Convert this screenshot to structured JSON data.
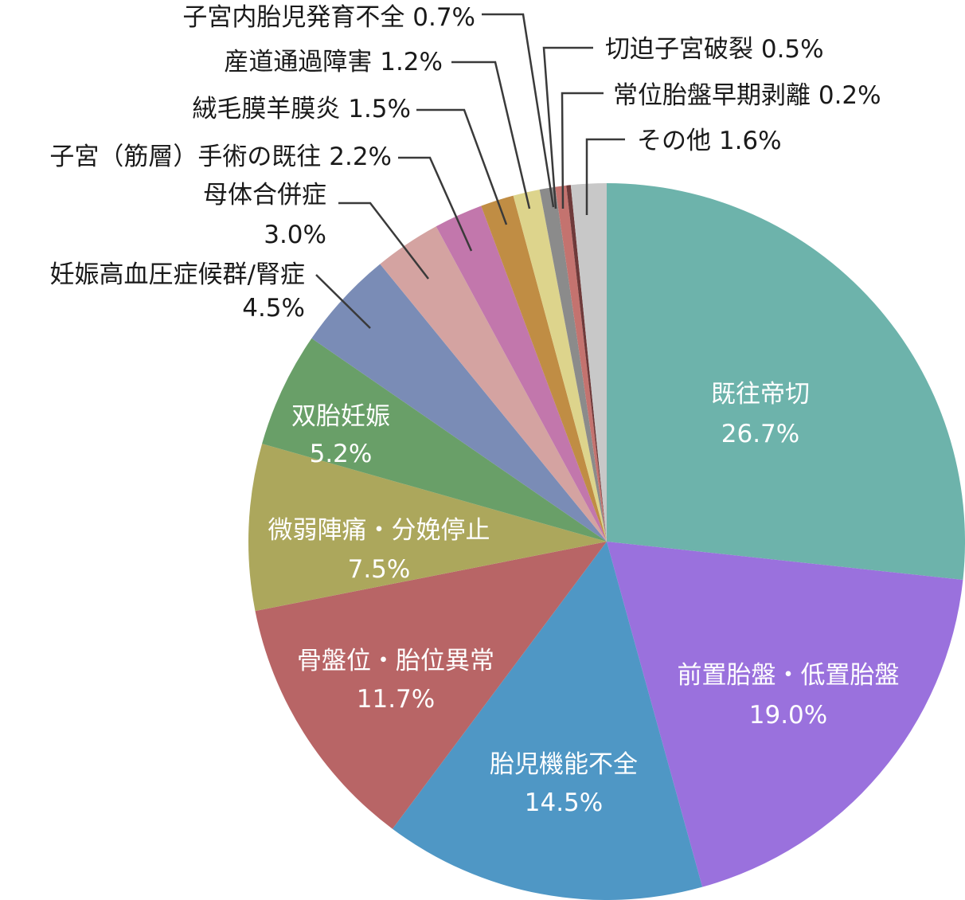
{
  "chart_data": {
    "type": "pie",
    "title": "",
    "start_angle_deg": 0,
    "direction": "clockwise",
    "slices": [
      {
        "label": "既往帝切",
        "value": 26.7,
        "display": "26.7%",
        "color": "#6db3ab"
      },
      {
        "label": "前置胎盤・低置胎盤",
        "value": 19.0,
        "display": "19.0%",
        "color": "#9a71dd"
      },
      {
        "label": "胎児機能不全",
        "value": 14.5,
        "display": "14.5%",
        "color": "#4f97c5"
      },
      {
        "label": "骨盤位・胎位異常",
        "value": 11.7,
        "display": "11.7%",
        "color": "#b86566"
      },
      {
        "label": "微弱陣痛・分娩停止",
        "value": 7.5,
        "display": "7.5%",
        "color": "#aca75c"
      },
      {
        "label": "双胎妊娠",
        "value": 5.2,
        "display": "5.2%",
        "color": "#699f68"
      },
      {
        "label": "妊娠高血圧症候群/腎症",
        "value": 4.5,
        "display": "4.5%",
        "color": "#7a8cb6"
      },
      {
        "label": "母体合併症",
        "value": 3.0,
        "display": "3.0%",
        "color": "#d4a3a1"
      },
      {
        "label": "子宮（筋層）手術の既往",
        "value": 2.2,
        "display": "2.2%",
        "color": "#c277ac"
      },
      {
        "label": "絨毛膜羊膜炎",
        "value": 1.5,
        "display": "1.5%",
        "color": "#c08d44"
      },
      {
        "label": "産道通過障害",
        "value": 1.2,
        "display": "1.2%",
        "color": "#ddd48c"
      },
      {
        "label": "子宮内胎児発育不全",
        "value": 0.7,
        "display": "0.7%",
        "color": "#8b8b8b"
      },
      {
        "label": "切迫子宮破裂",
        "value": 0.5,
        "display": "0.5%",
        "color": "#c4736f"
      },
      {
        "label": "常位胎盤早期剥離",
        "value": 0.2,
        "display": "0.2%",
        "color": "#6e3a3a"
      },
      {
        "label": "その他",
        "value": 1.6,
        "display": "1.6%",
        "color": "#c8c8c8"
      }
    ]
  }
}
